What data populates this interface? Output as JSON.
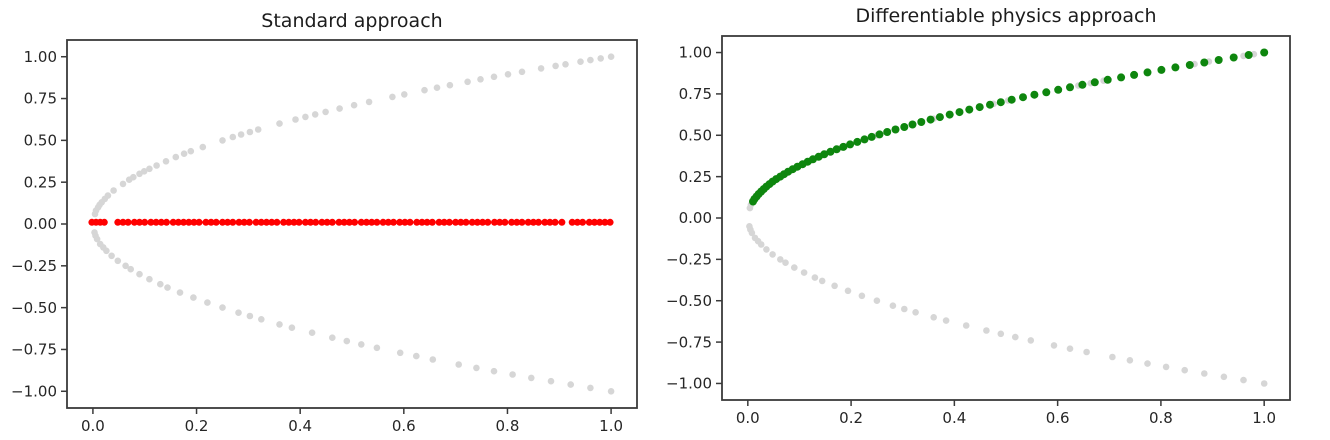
{
  "figure": {
    "background": "#ffffff",
    "style": {
      "spine_color": "#3a3a3a",
      "tick_color": "#3a3a3a",
      "tick_label_color": "#262626",
      "data_gray": "#d6d6d6",
      "standard_red": "#ff0000",
      "diffphys_green": "#0e860e"
    }
  },
  "chart_data": {
    "type": "scatter",
    "description": "Two scatter plots: training data (x, ±sqrt(x)) in light gray; left panel shows a supervised NN prediction collapsed to y≈0.01 (red); right panel shows a differentiable-physics NN prediction following y=+sqrt(x) (green).",
    "point_sets": {
      "parabola_data_upper": [
        [
          0.004,
          0.06
        ],
        [
          0.006,
          0.08
        ],
        [
          0.01,
          0.1
        ],
        [
          0.013,
          0.115
        ],
        [
          0.017,
          0.13
        ],
        [
          0.023,
          0.15
        ],
        [
          0.029,
          0.17
        ],
        [
          0.04,
          0.2
        ],
        [
          0.058,
          0.24
        ],
        [
          0.07,
          0.265
        ],
        [
          0.078,
          0.28
        ],
        [
          0.09,
          0.3
        ],
        [
          0.099,
          0.315
        ],
        [
          0.109,
          0.33
        ],
        [
          0.123,
          0.35
        ],
        [
          0.141,
          0.375
        ],
        [
          0.16,
          0.4
        ],
        [
          0.176,
          0.42
        ],
        [
          0.189,
          0.435
        ],
        [
          0.212,
          0.46
        ],
        [
          0.25,
          0.5
        ],
        [
          0.27,
          0.52
        ],
        [
          0.286,
          0.535
        ],
        [
          0.303,
          0.55
        ],
        [
          0.319,
          0.565
        ],
        [
          0.36,
          0.6
        ],
        [
          0.391,
          0.625
        ],
        [
          0.41,
          0.64
        ],
        [
          0.429,
          0.655
        ],
        [
          0.449,
          0.67
        ],
        [
          0.476,
          0.69
        ],
        [
          0.504,
          0.71
        ],
        [
          0.533,
          0.73
        ],
        [
          0.578,
          0.76
        ],
        [
          0.601,
          0.775
        ],
        [
          0.64,
          0.8
        ],
        [
          0.664,
          0.815
        ],
        [
          0.689,
          0.83
        ],
        [
          0.723,
          0.85
        ],
        [
          0.748,
          0.865
        ],
        [
          0.774,
          0.88
        ],
        [
          0.801,
          0.895
        ],
        [
          0.828,
          0.91
        ],
        [
          0.865,
          0.93
        ],
        [
          0.893,
          0.945
        ],
        [
          0.912,
          0.955
        ],
        [
          0.941,
          0.97
        ],
        [
          0.96,
          0.98
        ],
        [
          0.98,
          0.99
        ],
        [
          1.0,
          1.0
        ]
      ],
      "parabola_data_lower": [
        [
          0.003,
          -0.05
        ],
        [
          0.005,
          -0.07
        ],
        [
          0.008,
          -0.09
        ],
        [
          0.014,
          -0.12
        ],
        [
          0.02,
          -0.14
        ],
        [
          0.026,
          -0.16
        ],
        [
          0.036,
          -0.19
        ],
        [
          0.048,
          -0.22
        ],
        [
          0.063,
          -0.25
        ],
        [
          0.073,
          -0.27
        ],
        [
          0.09,
          -0.3
        ],
        [
          0.109,
          -0.33
        ],
        [
          0.13,
          -0.36
        ],
        [
          0.144,
          -0.38
        ],
        [
          0.168,
          -0.41
        ],
        [
          0.194,
          -0.44
        ],
        [
          0.221,
          -0.47
        ],
        [
          0.25,
          -0.5
        ],
        [
          0.281,
          -0.53
        ],
        [
          0.303,
          -0.55
        ],
        [
          0.325,
          -0.57
        ],
        [
          0.36,
          -0.6
        ],
        [
          0.384,
          -0.62
        ],
        [
          0.423,
          -0.65
        ],
        [
          0.462,
          -0.68
        ],
        [
          0.49,
          -0.7
        ],
        [
          0.518,
          -0.72
        ],
        [
          0.548,
          -0.74
        ],
        [
          0.593,
          -0.77
        ],
        [
          0.624,
          -0.79
        ],
        [
          0.656,
          -0.81
        ],
        [
          0.706,
          -0.84
        ],
        [
          0.74,
          -0.86
        ],
        [
          0.774,
          -0.88
        ],
        [
          0.81,
          -0.9
        ],
        [
          0.846,
          -0.92
        ],
        [
          0.884,
          -0.94
        ],
        [
          0.922,
          -0.96
        ],
        [
          0.96,
          -0.98
        ],
        [
          1.0,
          -1.0
        ]
      ],
      "standard_nn_prediction": {
        "x": [
          -0.002,
          0.006,
          0.014,
          0.022,
          0.048,
          0.058,
          0.068,
          0.08,
          0.09,
          0.1,
          0.112,
          0.122,
          0.132,
          0.142,
          0.155,
          0.165,
          0.175,
          0.185,
          0.195,
          0.205,
          0.218,
          0.228,
          0.238,
          0.25,
          0.26,
          0.27,
          0.282,
          0.292,
          0.302,
          0.315,
          0.325,
          0.335,
          0.345,
          0.355,
          0.368,
          0.378,
          0.388,
          0.398,
          0.41,
          0.42,
          0.43,
          0.442,
          0.452,
          0.462,
          0.475,
          0.485,
          0.495,
          0.505,
          0.518,
          0.528,
          0.538,
          0.548,
          0.56,
          0.57,
          0.58,
          0.592,
          0.602,
          0.612,
          0.625,
          0.635,
          0.645,
          0.655,
          0.668,
          0.678,
          0.688,
          0.7,
          0.71,
          0.72,
          0.732,
          0.742,
          0.752,
          0.762,
          0.775,
          0.785,
          0.795,
          0.808,
          0.818,
          0.828,
          0.84,
          0.85,
          0.86,
          0.872,
          0.882,
          0.892,
          0.905,
          0.925,
          0.935,
          0.945,
          0.958,
          0.968,
          0.978,
          0.988,
          0.998
        ],
        "y": 0.01
      },
      "diffphys_nn_prediction": [
        [
          0.01,
          0.1
        ],
        [
          0.013,
          0.115
        ],
        [
          0.017,
          0.13
        ],
        [
          0.021,
          0.145
        ],
        [
          0.026,
          0.16
        ],
        [
          0.031,
          0.175
        ],
        [
          0.036,
          0.19
        ],
        [
          0.042,
          0.205
        ],
        [
          0.048,
          0.22
        ],
        [
          0.055,
          0.235
        ],
        [
          0.063,
          0.25
        ],
        [
          0.07,
          0.265
        ],
        [
          0.078,
          0.28
        ],
        [
          0.087,
          0.295
        ],
        [
          0.096,
          0.31
        ],
        [
          0.106,
          0.325
        ],
        [
          0.116,
          0.34
        ],
        [
          0.126,
          0.355
        ],
        [
          0.137,
          0.37
        ],
        [
          0.148,
          0.385
        ],
        [
          0.16,
          0.4
        ],
        [
          0.172,
          0.415
        ],
        [
          0.185,
          0.43
        ],
        [
          0.198,
          0.445
        ],
        [
          0.212,
          0.46
        ],
        [
          0.226,
          0.475
        ],
        [
          0.24,
          0.49
        ],
        [
          0.255,
          0.505
        ],
        [
          0.27,
          0.52
        ],
        [
          0.286,
          0.535
        ],
        [
          0.303,
          0.55
        ],
        [
          0.319,
          0.565
        ],
        [
          0.336,
          0.58
        ],
        [
          0.354,
          0.595
        ],
        [
          0.372,
          0.61
        ],
        [
          0.391,
          0.625
        ],
        [
          0.41,
          0.64
        ],
        [
          0.429,
          0.655
        ],
        [
          0.449,
          0.67
        ],
        [
          0.469,
          0.685
        ],
        [
          0.49,
          0.7
        ],
        [
          0.511,
          0.715
        ],
        [
          0.533,
          0.73
        ],
        [
          0.555,
          0.745
        ],
        [
          0.578,
          0.76
        ],
        [
          0.601,
          0.775
        ],
        [
          0.624,
          0.79
        ],
        [
          0.648,
          0.805
        ],
        [
          0.672,
          0.82
        ],
        [
          0.697,
          0.835
        ],
        [
          0.723,
          0.85
        ],
        [
          0.748,
          0.865
        ],
        [
          0.774,
          0.88
        ],
        [
          0.801,
          0.895
        ],
        [
          0.828,
          0.91
        ],
        [
          0.856,
          0.925
        ],
        [
          0.884,
          0.94
        ],
        [
          0.912,
          0.955
        ],
        [
          0.941,
          0.97
        ],
        [
          0.97,
          0.985
        ],
        [
          1.0,
          1.0
        ]
      ]
    },
    "charts": [
      {
        "title": "Standard approach",
        "xlim": [
          -0.05,
          1.05
        ],
        "ylim": [
          -1.1,
          1.1
        ],
        "grid": false,
        "legend": null,
        "xticks": {
          "values": [
            0.0,
            0.2,
            0.4,
            0.6,
            0.8,
            1.0
          ],
          "labels": [
            "0.0",
            "0.2",
            "0.4",
            "0.6",
            "0.8",
            "1.0"
          ]
        },
        "yticks": {
          "values": [
            1.0,
            0.75,
            0.5,
            0.25,
            0.0,
            -0.25,
            -0.5,
            -0.75,
            -1.0
          ],
          "labels": [
            "1.00",
            "0.75",
            "0.50",
            "0.25",
            "0.00",
            "−0.25",
            "−0.50",
            "−0.75",
            "−1.00"
          ]
        },
        "series": [
          {
            "name": "training-data-upper-branch",
            "points_ref": "parabola_data_upper",
            "color": "#d6d6d6",
            "marker_radius": 3.3
          },
          {
            "name": "training-data-lower-branch",
            "points_ref": "parabola_data_lower",
            "color": "#d6d6d6",
            "marker_radius": 3.3
          },
          {
            "name": "supervised-nn-prediction",
            "points_ref": "standard_nn_prediction",
            "color": "#ff0000",
            "marker_radius": 3.5
          }
        ]
      },
      {
        "title": "Differentiable physics approach",
        "xlim": [
          -0.05,
          1.05
        ],
        "ylim": [
          -1.1,
          1.1
        ],
        "grid": false,
        "legend": null,
        "xticks": {
          "values": [
            0.0,
            0.2,
            0.4,
            0.6,
            0.8,
            1.0
          ],
          "labels": [
            "0.0",
            "0.2",
            "0.4",
            "0.6",
            "0.8",
            "1.0"
          ]
        },
        "yticks": {
          "values": [
            1.0,
            0.75,
            0.5,
            0.25,
            0.0,
            -0.25,
            -0.5,
            -0.75,
            -1.0
          ],
          "labels": [
            "1.00",
            "0.75",
            "0.50",
            "0.25",
            "0.00",
            "−0.25",
            "−0.50",
            "−0.75",
            "−1.00"
          ]
        },
        "series": [
          {
            "name": "training-data-upper-branch",
            "points_ref": "parabola_data_upper",
            "color": "#d6d6d6",
            "marker_radius": 3.3
          },
          {
            "name": "training-data-lower-branch",
            "points_ref": "parabola_data_lower",
            "color": "#d6d6d6",
            "marker_radius": 3.3
          },
          {
            "name": "diffphys-nn-prediction",
            "points_ref": "diffphys_nn_prediction",
            "color": "#0e860e",
            "marker_radius": 4.0
          }
        ]
      }
    ]
  }
}
